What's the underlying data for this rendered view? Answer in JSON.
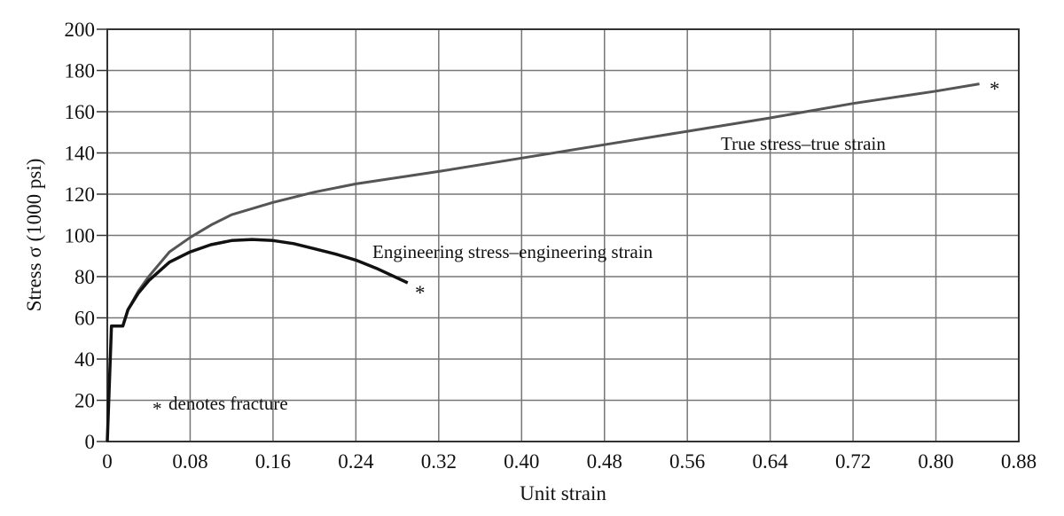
{
  "chart_data": {
    "type": "line",
    "xlabel": "Unit strain",
    "ylabel": "Stress σ (1000 psi)",
    "xlim": [
      0,
      0.88
    ],
    "ylim": [
      0,
      200
    ],
    "grid": true,
    "xticks": [
      "0",
      "0.08",
      "0.16",
      "0.24",
      "0.32",
      "0.40",
      "0.48",
      "0.56",
      "0.64",
      "0.72",
      "0.80",
      "0.88"
    ],
    "yticks": [
      "0",
      "20",
      "40",
      "60",
      "80",
      "100",
      "120",
      "140",
      "160",
      "180",
      "200"
    ],
    "series": [
      {
        "name": "Engineering stress–engineering strain",
        "color": "#111111",
        "points": [
          [
            0,
            0
          ],
          [
            0.004,
            56
          ],
          [
            0.015,
            56
          ],
          [
            0.02,
            64
          ],
          [
            0.03,
            72
          ],
          [
            0.04,
            78
          ],
          [
            0.06,
            87
          ],
          [
            0.08,
            92
          ],
          [
            0.1,
            95.5
          ],
          [
            0.12,
            97.5
          ],
          [
            0.14,
            98
          ],
          [
            0.16,
            97.5
          ],
          [
            0.18,
            96
          ],
          [
            0.2,
            93.5
          ],
          [
            0.22,
            91
          ],
          [
            0.24,
            88
          ],
          [
            0.26,
            84
          ],
          [
            0.29,
            77
          ]
        ]
      },
      {
        "name": "True stress–true strain",
        "color": "#555555",
        "points": [
          [
            0.015,
            56
          ],
          [
            0.02,
            64
          ],
          [
            0.03,
            73
          ],
          [
            0.04,
            80
          ],
          [
            0.06,
            92
          ],
          [
            0.08,
            99
          ],
          [
            0.1,
            105
          ],
          [
            0.12,
            110
          ],
          [
            0.16,
            116
          ],
          [
            0.2,
            121
          ],
          [
            0.24,
            125
          ],
          [
            0.32,
            131
          ],
          [
            0.4,
            137.5
          ],
          [
            0.48,
            144
          ],
          [
            0.56,
            150.5
          ],
          [
            0.64,
            157
          ],
          [
            0.72,
            164
          ],
          [
            0.8,
            170
          ],
          [
            0.842,
            173.5
          ]
        ]
      }
    ],
    "annotations": {
      "fracture_marker": "*",
      "fracture_note": "denotes fracture"
    }
  }
}
